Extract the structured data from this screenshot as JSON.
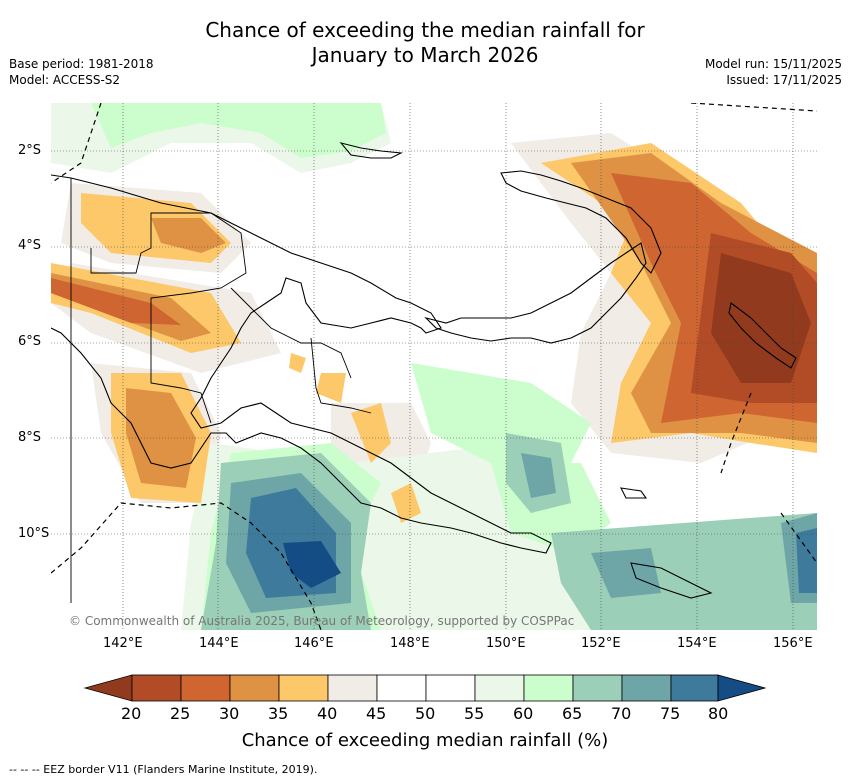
{
  "header": {
    "title_line1": "Chance of exceeding the median rainfall for",
    "title_line2": "January to March 2026",
    "base_period": "Base period: 1981-2018",
    "model": "Model: ACCESS-S2",
    "model_run": "Model run: 15/11/2025",
    "issued": "Issued: 17/11/2025"
  },
  "map": {
    "lat_labels": [
      "2°S",
      "4°S",
      "6°S",
      "8°S",
      "10°S"
    ],
    "lon_labels": [
      "142°E",
      "144°E",
      "146°E",
      "148°E",
      "150°E",
      "152°E",
      "154°E",
      "156°E"
    ],
    "copyright": "© Commonwealth of Australia 2025, Bureau of Meteorology, supported by COSPPac"
  },
  "legend": {
    "title": "Chance of exceeding median rainfall (%)",
    "ticks": [
      "20",
      "25",
      "30",
      "35",
      "40",
      "45",
      "50",
      "55",
      "60",
      "65",
      "70",
      "75",
      "80"
    ],
    "colors": {
      "below_20": "#923a1e",
      "c20_25": "#b24c26",
      "c25_30": "#cf6530",
      "c30_35": "#e09244",
      "c35_40": "#fcc86a",
      "c40_45": "#f1ece6",
      "c45_50": "#ffffff",
      "c50_55": "#ffffff",
      "c55_60": "#eaf7e9",
      "c60_65": "#ccfdcc",
      "c65_70": "#9ccfb7",
      "c70_75": "#6ea6a8",
      "c75_80": "#3e7a9b",
      "above_80": "#144d85"
    }
  },
  "footnote": "--  --  -- EEZ border V11 (Flanders Marine Institute, 2019)."
}
